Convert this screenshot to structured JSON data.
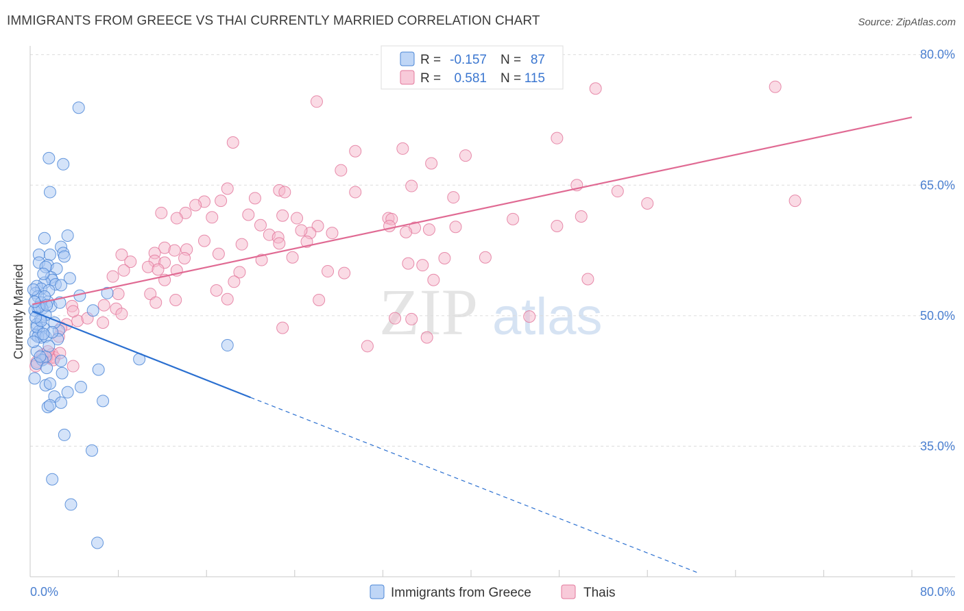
{
  "title": "IMMIGRANTS FROM GREECE VS THAI CURRENTLY MARRIED CORRELATION CHART",
  "source": "Source: ZipAtlas.com",
  "watermark": {
    "zip": "ZIP",
    "atlas": "atlas"
  },
  "colors": {
    "blue_fill": "#a9c8f3",
    "blue_stroke": "#4a85d6",
    "blue_line": "#2a6fd0",
    "pink_fill": "#f6b8cc",
    "pink_stroke": "#e3789c",
    "pink_line": "#e06a93",
    "tick_text": "#4a7fd0",
    "grid": "#dcdcdc"
  },
  "legend": {
    "r_label": "R =",
    "n_label": "N =",
    "series": [
      {
        "name": "Immigrants from Greece",
        "r": "-0.157",
        "n": "87"
      },
      {
        "name": "Thais",
        "r": "0.581",
        "n": "115"
      }
    ]
  },
  "chart_data": {
    "type": "scatter",
    "title": "IMMIGRANTS FROM GREECE VS THAI CURRENTLY MARRIED CORRELATION CHART",
    "xlabel": "",
    "ylabel": "Currently Married",
    "xlim": [
      0,
      80
    ],
    "ylim": [
      20,
      81
    ],
    "x_tick_labels": [
      "0.0%",
      "80.0%"
    ],
    "y_ticks": [
      35,
      50,
      65,
      80
    ],
    "y_tick_labels": [
      "35.0%",
      "50.0%",
      "65.0%",
      "80.0%"
    ],
    "grid": true,
    "series": [
      {
        "name": "Immigrants from Greece",
        "r": -0.157,
        "n": 87,
        "trend": {
          "x_start": 0.2,
          "y_start": 50.5,
          "x_solid_end": 20,
          "y_solid_end": 40.6,
          "x_dash_end": 60.5,
          "y_dash_end": 20.5
        },
        "points": [
          [
            4.4,
            73.9
          ],
          [
            1.7,
            68.1
          ],
          [
            3.0,
            67.4
          ],
          [
            1.8,
            64.2
          ],
          [
            1.3,
            58.9
          ],
          [
            3.4,
            59.2
          ],
          [
            2.8,
            57.9
          ],
          [
            3.0,
            57.2
          ],
          [
            3.1,
            56.8
          ],
          [
            0.8,
            57.0
          ],
          [
            1.8,
            57.0
          ],
          [
            0.8,
            56.1
          ],
          [
            1.6,
            55.8
          ],
          [
            1.4,
            55.6
          ],
          [
            2.4,
            55.4
          ],
          [
            1.9,
            54.4
          ],
          [
            3.6,
            54.3
          ],
          [
            2.0,
            54.1
          ],
          [
            1.3,
            53.8
          ],
          [
            2.3,
            53.6
          ],
          [
            2.8,
            53.5
          ],
          [
            0.6,
            53.4
          ],
          [
            1.0,
            53.1
          ],
          [
            1.7,
            52.9
          ],
          [
            0.5,
            52.6
          ],
          [
            0.7,
            52.2
          ],
          [
            1.6,
            51.6
          ],
          [
            1.0,
            51.5
          ],
          [
            1.9,
            51.1
          ],
          [
            0.7,
            50.8
          ],
          [
            1.1,
            50.8
          ],
          [
            0.4,
            50.6
          ],
          [
            1.4,
            50.1
          ],
          [
            0.9,
            49.5
          ],
          [
            0.6,
            49.0
          ],
          [
            1.2,
            48.6
          ],
          [
            0.8,
            48.2
          ],
          [
            0.5,
            47.8
          ],
          [
            1.0,
            47.5
          ],
          [
            0.7,
            47.6
          ],
          [
            1.4,
            47.6
          ],
          [
            2.6,
            48.3
          ],
          [
            2.5,
            47.3
          ],
          [
            0.6,
            45.9
          ],
          [
            1.4,
            45.3
          ],
          [
            1.1,
            44.9
          ],
          [
            2.8,
            44.8
          ],
          [
            0.6,
            44.5
          ],
          [
            1.5,
            44.0
          ],
          [
            2.9,
            43.4
          ],
          [
            0.4,
            42.8
          ],
          [
            1.4,
            42.0
          ],
          [
            1.8,
            42.2
          ],
          [
            4.6,
            41.8
          ],
          [
            3.4,
            41.2
          ],
          [
            2.2,
            40.7
          ],
          [
            2.8,
            40.0
          ],
          [
            1.6,
            39.5
          ],
          [
            1.8,
            39.7
          ],
          [
            6.6,
            40.2
          ],
          [
            6.2,
            43.8
          ],
          [
            3.1,
            36.3
          ],
          [
            5.6,
            34.5
          ],
          [
            2.0,
            31.2
          ],
          [
            3.7,
            28.3
          ],
          [
            6.1,
            23.9
          ],
          [
            7.0,
            52.6
          ],
          [
            5.7,
            50.6
          ],
          [
            9.9,
            45.0
          ],
          [
            17.9,
            46.6
          ],
          [
            0.8,
            51.0
          ],
          [
            1.3,
            52.2
          ],
          [
            2.2,
            49.2
          ],
          [
            0.6,
            48.7
          ],
          [
            1.7,
            46.5
          ],
          [
            0.3,
            53.0
          ],
          [
            1.2,
            54.8
          ],
          [
            2.7,
            51.5
          ],
          [
            4.5,
            52.3
          ],
          [
            0.9,
            45.3
          ],
          [
            0.4,
            51.6
          ],
          [
            1.0,
            49.4
          ],
          [
            2.0,
            48.1
          ],
          [
            0.3,
            47.0
          ],
          [
            1.5,
            51.2
          ],
          [
            0.5,
            49.8
          ],
          [
            1.2,
            47.9
          ]
        ]
      },
      {
        "name": "Thais",
        "r": 0.581,
        "n": 115,
        "trend": {
          "x_start": 0.2,
          "y_start": 51.3,
          "x_end": 80,
          "y_end": 72.8
        },
        "points": [
          [
            26.0,
            74.6
          ],
          [
            51.3,
            76.1
          ],
          [
            67.6,
            76.3
          ],
          [
            18.4,
            69.9
          ],
          [
            47.8,
            70.4
          ],
          [
            29.5,
            68.9
          ],
          [
            33.8,
            69.2
          ],
          [
            39.5,
            68.4
          ],
          [
            36.4,
            67.5
          ],
          [
            28.2,
            66.7
          ],
          [
            34.6,
            64.9
          ],
          [
            49.6,
            65.0
          ],
          [
            53.3,
            64.3
          ],
          [
            22.6,
            64.4
          ],
          [
            17.9,
            64.6
          ],
          [
            23.1,
            64.2
          ],
          [
            29.5,
            64.2
          ],
          [
            38.4,
            63.6
          ],
          [
            15.8,
            63.1
          ],
          [
            17.3,
            63.2
          ],
          [
            20.4,
            63.5
          ],
          [
            56.0,
            62.9
          ],
          [
            69.4,
            63.2
          ],
          [
            15.0,
            62.7
          ],
          [
            11.9,
            61.8
          ],
          [
            14.1,
            61.8
          ],
          [
            16.5,
            61.3
          ],
          [
            19.8,
            61.6
          ],
          [
            22.9,
            61.5
          ],
          [
            24.2,
            61.2
          ],
          [
            32.5,
            61.2
          ],
          [
            32.8,
            61.1
          ],
          [
            43.8,
            61.1
          ],
          [
            50.0,
            61.4
          ],
          [
            13.3,
            61.2
          ],
          [
            20.9,
            60.4
          ],
          [
            26.1,
            60.3
          ],
          [
            32.6,
            60.3
          ],
          [
            34.9,
            60.1
          ],
          [
            47.8,
            60.3
          ],
          [
            25.4,
            59.5
          ],
          [
            27.4,
            59.5
          ],
          [
            24.6,
            59.8
          ],
          [
            21.7,
            59.3
          ],
          [
            22.5,
            59.0
          ],
          [
            25.1,
            58.5
          ],
          [
            15.8,
            58.6
          ],
          [
            19.2,
            58.2
          ],
          [
            22.6,
            58.3
          ],
          [
            34.1,
            59.6
          ],
          [
            36.2,
            59.9
          ],
          [
            38.6,
            60.2
          ],
          [
            14.2,
            57.6
          ],
          [
            12.2,
            57.8
          ],
          [
            13.1,
            57.5
          ],
          [
            17.1,
            57.1
          ],
          [
            8.3,
            57.0
          ],
          [
            11.3,
            57.2
          ],
          [
            9.1,
            56.2
          ],
          [
            11.3,
            56.3
          ],
          [
            12.2,
            56.1
          ],
          [
            14.0,
            56.6
          ],
          [
            23.8,
            56.7
          ],
          [
            21.0,
            56.4
          ],
          [
            37.6,
            56.6
          ],
          [
            41.3,
            56.7
          ],
          [
            34.3,
            56.0
          ],
          [
            35.6,
            55.8
          ],
          [
            8.5,
            55.2
          ],
          [
            10.7,
            55.6
          ],
          [
            11.6,
            55.3
          ],
          [
            13.3,
            55.2
          ],
          [
            19.0,
            55.0
          ],
          [
            27.0,
            55.1
          ],
          [
            28.5,
            54.9
          ],
          [
            7.5,
            54.5
          ],
          [
            12.2,
            54.1
          ],
          [
            18.5,
            53.9
          ],
          [
            36.6,
            54.1
          ],
          [
            50.6,
            54.2
          ],
          [
            8.0,
            52.5
          ],
          [
            10.9,
            52.5
          ],
          [
            16.9,
            52.9
          ],
          [
            11.4,
            51.5
          ],
          [
            13.2,
            51.8
          ],
          [
            17.9,
            51.9
          ],
          [
            26.2,
            51.8
          ],
          [
            6.7,
            51.2
          ],
          [
            7.8,
            50.8
          ],
          [
            3.8,
            51.1
          ],
          [
            4.3,
            49.4
          ],
          [
            3.9,
            50.5
          ],
          [
            5.2,
            49.7
          ],
          [
            6.6,
            49.2
          ],
          [
            3.3,
            49.0
          ],
          [
            8.3,
            50.2
          ],
          [
            22.9,
            48.6
          ],
          [
            30.6,
            46.5
          ],
          [
            33.1,
            49.7
          ],
          [
            34.6,
            49.6
          ],
          [
            36.0,
            47.5
          ],
          [
            45.3,
            49.9
          ],
          [
            2.8,
            48.6
          ],
          [
            2.6,
            47.6
          ],
          [
            2.0,
            45.6
          ],
          [
            1.8,
            45.1
          ],
          [
            1.0,
            45.0
          ],
          [
            2.2,
            45.2
          ],
          [
            3.9,
            44.2
          ],
          [
            0.6,
            44.7
          ],
          [
            1.5,
            45.2
          ],
          [
            0.5,
            44.2
          ],
          [
            2.1,
            44.9
          ],
          [
            1.1,
            45.5
          ],
          [
            1.6,
            45.9
          ],
          [
            2.7,
            45.7
          ]
        ]
      }
    ]
  }
}
